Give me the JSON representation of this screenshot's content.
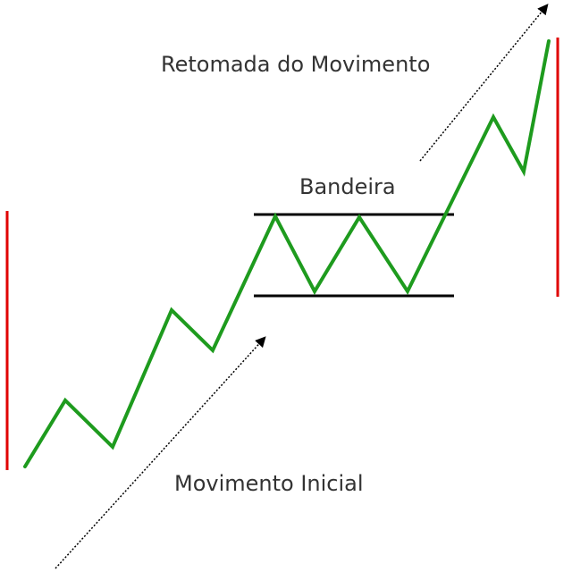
{
  "labels": {
    "resumption": "Retomada do Movimento",
    "flag": "Bandeira",
    "initial": "Movimento Inicial"
  },
  "colors": {
    "price_line": "#1e9b1e",
    "marker": "#e00000",
    "flag_lines": "#000000",
    "arrow": "#000000",
    "text": "#333333"
  }
}
